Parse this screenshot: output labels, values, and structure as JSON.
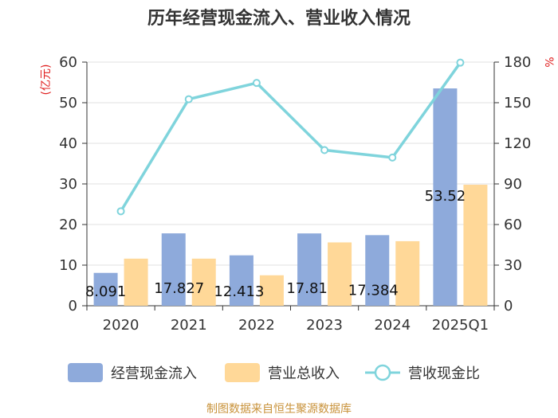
{
  "title": "历年经营现金流入、营业收入情况",
  "source": "制图数据来自恒生聚源数据库",
  "colors": {
    "bar1": "#8eaadb",
    "bar2": "#ffd898",
    "line": "#7fd4dc",
    "axis": "#333333",
    "grid": "#e0e0e0",
    "unit": "#e02020"
  },
  "chart_data": {
    "type": "bar",
    "categories": [
      "2020",
      "2021",
      "2022",
      "2023",
      "2024",
      "2025Q1"
    ],
    "left_unit": "(亿元)",
    "right_unit": "%",
    "y_left": {
      "min": 0,
      "max": 60,
      "ticks": [
        "0",
        "10",
        "20",
        "30",
        "40",
        "50",
        "60"
      ]
    },
    "y_right": {
      "min": 0,
      "max": 180,
      "ticks": [
        "0",
        "30",
        "60",
        "90",
        "120",
        "150",
        "180"
      ]
    },
    "series": [
      {
        "name": "经营现金流入",
        "type": "bar",
        "axis": "left",
        "values": [
          8.091,
          17.827,
          12.413,
          17.81,
          17.384,
          53.52
        ],
        "labels": [
          "8.091",
          "17.827",
          "12.413",
          "17.81",
          "17.384",
          "53.52"
        ]
      },
      {
        "name": "营业总收入",
        "type": "bar",
        "axis": "left",
        "values": [
          11.6,
          11.6,
          7.5,
          15.6,
          15.9,
          29.8
        ]
      },
      {
        "name": "营收现金比",
        "type": "line",
        "axis": "right",
        "values": [
          69.8,
          152.6,
          164.6,
          115.0,
          109.5,
          179.6
        ]
      }
    ],
    "legend": [
      "经营现金流入",
      "营业总收入",
      "营收现金比"
    ],
    "legend_position": "bottom"
  }
}
